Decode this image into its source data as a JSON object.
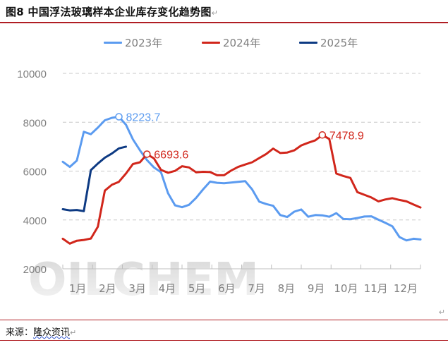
{
  "header": {
    "title": "图8  中国浮法玻璃样本企业库存变化趋势图",
    "paragraph_mark": "↵"
  },
  "legend": [
    {
      "label": "2023年",
      "color": "#5b9bf0"
    },
    {
      "label": "2024年",
      "color": "#d1261b"
    },
    {
      "label": "2025年",
      "color": "#0d3a83"
    }
  ],
  "footer": {
    "source_label": "来源：",
    "source_name": "隆众资讯",
    "paragraph_mark": "↵"
  },
  "watermark": "OILCHEM",
  "chart_data": {
    "type": "line",
    "title": "中国浮法玻璃样本企业库存变化趋势图",
    "xlabel": "",
    "ylabel": "",
    "ylim": [
      2000,
      10000
    ],
    "yticks": [
      2000,
      4000,
      6000,
      8000,
      10000
    ],
    "x_tick_labels": [
      "1月",
      "2月",
      "3月",
      "4月",
      "5月",
      "6月",
      "7月",
      "8月",
      "9月",
      "10月",
      "11月",
      "12月"
    ],
    "grid": "horizontal dashed",
    "legend_position": "top",
    "series": [
      {
        "name": "2023年",
        "color": "#5b9bf0",
        "values": [
          6380,
          6170,
          6430,
          7610,
          7510,
          7780,
          8080,
          8180,
          8224,
          7900,
          7300,
          6850,
          6450,
          6150,
          5950,
          5100,
          4600,
          4520,
          4620,
          4900,
          5250,
          5570,
          5520,
          5500,
          5530,
          5560,
          5590,
          5250,
          4750,
          4650,
          4580,
          4200,
          4120,
          4340,
          4430,
          4130,
          4200,
          4190,
          4130,
          4280,
          4040,
          4030,
          4080,
          4140,
          4150,
          4010,
          3880,
          3740,
          3300,
          3160,
          3230,
          3200
        ],
        "max_label": "8223.7",
        "max_index": 8
      },
      {
        "name": "2024年",
        "color": "#d1261b",
        "values": [
          3230,
          3030,
          3150,
          3180,
          3240,
          3720,
          5200,
          5440,
          5560,
          5900,
          6290,
          6360,
          6694,
          6520,
          6050,
          5930,
          6010,
          6200,
          6150,
          5950,
          5970,
          5960,
          5830,
          5830,
          6020,
          6170,
          6270,
          6360,
          6530,
          6700,
          6920,
          6740,
          6760,
          6850,
          7050,
          7160,
          7260,
          7479,
          7310,
          5900,
          5800,
          5720,
          5140,
          5030,
          4920,
          4760,
          4840,
          4890,
          4820,
          4760,
          4630,
          4510
        ],
        "max_label": "7478.9",
        "max_index": 37
      },
      {
        "name": "2025年",
        "color": "#0d3a83",
        "values": [
          4440,
          4390,
          4410,
          4360,
          6040,
          6310,
          6550,
          6720,
          6930,
          7000
        ]
      }
    ],
    "annotations": [
      {
        "text": "8223.7",
        "series": "2023年"
      },
      {
        "text": "6693.6",
        "series": "2024年"
      },
      {
        "text": "7478.9",
        "series": "2024年"
      }
    ]
  }
}
